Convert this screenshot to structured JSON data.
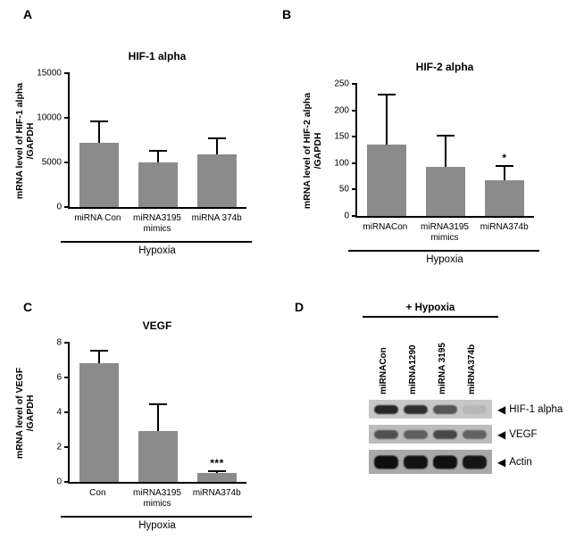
{
  "figure": {
    "panel_letters": {
      "a": "A",
      "b": "B",
      "c": "C",
      "d": "D"
    }
  },
  "chart_data": [
    {
      "type": "bar",
      "panel": "A",
      "title": "HIF-1 alpha",
      "ylabel": "mRNA level of HIF-1 alpha\n/GAPDH",
      "categories": [
        "miRNA Con",
        "miRNA3195\nmimics",
        "miRNA 374b"
      ],
      "values": [
        7200,
        5000,
        5900
      ],
      "errors_upper": [
        2500,
        1400,
        1900
      ],
      "significance": [
        "",
        "",
        ""
      ],
      "ylim": [
        0,
        15000
      ],
      "yticks": [
        0,
        5000,
        10000,
        15000
      ],
      "group_label": "Hypoxia",
      "bar_color": "#8b8b8b",
      "grid": false,
      "legend": "none"
    },
    {
      "type": "bar",
      "panel": "B",
      "title": "HIF-2 alpha",
      "ylabel": "mRNA level of HIF-2 alpha\n/GAPDH",
      "categories": [
        "miRNACon",
        "miRNA3195\nmimics",
        "miRNA374b"
      ],
      "values": [
        135,
        93,
        67
      ],
      "errors_upper": [
        97,
        60,
        30
      ],
      "significance": [
        "",
        "",
        "*"
      ],
      "ylim": [
        0,
        250
      ],
      "yticks": [
        0,
        50,
        100,
        150,
        200,
        250
      ],
      "group_label": "Hypoxia",
      "bar_color": "#8b8b8b",
      "grid": false,
      "legend": "none"
    },
    {
      "type": "bar",
      "panel": "C",
      "title": "VEGF",
      "ylabel": "mRNA level of VEGF\n/GAPDH",
      "categories": [
        "Con",
        "miRNA3195\nmimics",
        "miRNA374b"
      ],
      "values": [
        6.8,
        2.9,
        0.5
      ],
      "errors_upper": [
        0.8,
        1.6,
        0.15
      ],
      "significance": [
        "",
        "",
        "***"
      ],
      "ylim": [
        0,
        8
      ],
      "yticks": [
        0,
        2,
        4,
        6,
        8
      ],
      "group_label": "Hypoxia",
      "bar_color": "#8b8b8b",
      "grid": false,
      "legend": "none"
    }
  ],
  "blot": {
    "panel": "D",
    "header": "+ Hypoxia",
    "lanes": [
      "miRNACon",
      "miRNA1290",
      "miRNA 3195",
      "miRNA374b"
    ],
    "rows": [
      {
        "label": "HIF-1 alpha",
        "band_intensities": [
          0.85,
          0.8,
          0.6,
          0.08
        ]
      },
      {
        "label": "VEGF",
        "band_intensities": [
          0.6,
          0.52,
          0.65,
          0.5
        ]
      },
      {
        "label": "Actin",
        "band_intensities": [
          0.97,
          0.95,
          0.96,
          0.93
        ]
      }
    ],
    "arrow_icon": "◀"
  }
}
